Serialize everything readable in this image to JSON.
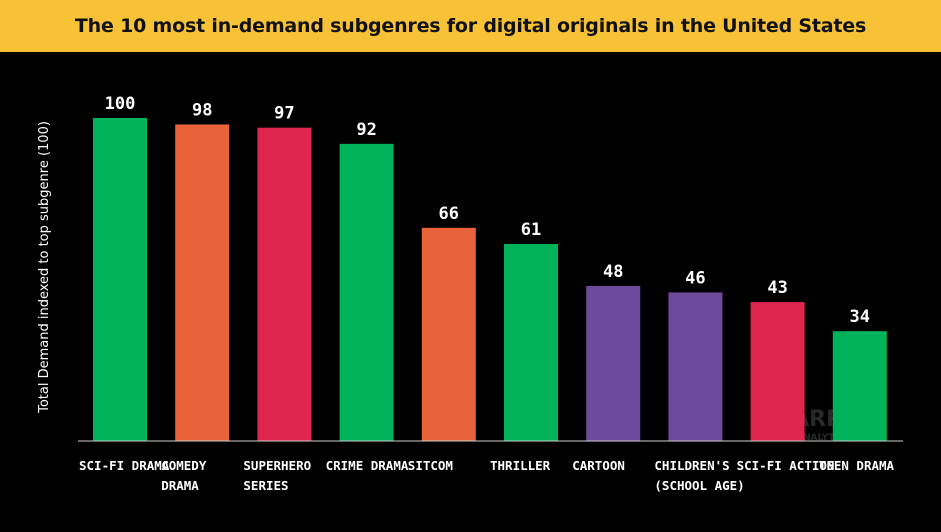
{
  "title": "The 10 most in-demand subgenres for digital originals in the United States",
  "watermark": {
    "line1": "PARROT",
    "line2": "ANALYTICS",
    "icon": "parrot-logo-icon"
  },
  "colors": {
    "title_bg": "#F7C236",
    "background": "#000000",
    "green": "#00B35A",
    "orange": "#E8633A",
    "red": "#E0264E",
    "purple": "#6E4A9E"
  },
  "chart_data": {
    "type": "bar",
    "title": "The 10 most in-demand subgenres for digital originals in the United States",
    "ylabel": "Total Demand indexed to top subgenre (100)",
    "xlabel": "",
    "ylim": [
      0,
      100
    ],
    "grid": false,
    "categories": [
      [
        "SCI-FI DRAMA"
      ],
      [
        "COMEDY",
        "DRAMA"
      ],
      [
        "SUPERHERO",
        "SERIES"
      ],
      [
        "CRIME DRAMA"
      ],
      [
        "SITCOM"
      ],
      [
        "THRILLER"
      ],
      [
        "CARTOON"
      ],
      [
        "CHILDREN'S",
        "(SCHOOL AGE)"
      ],
      [
        "SCI-FI ACTION"
      ],
      [
        "TEEN DRAMA"
      ]
    ],
    "values": [
      100,
      98,
      97,
      92,
      66,
      61,
      48,
      46,
      43,
      34
    ],
    "bar_colors": [
      "#00B35A",
      "#E8633A",
      "#E0264E",
      "#00B35A",
      "#E8633A",
      "#00B35A",
      "#6E4A9E",
      "#6E4A9E",
      "#E0264E",
      "#00B35A"
    ]
  }
}
